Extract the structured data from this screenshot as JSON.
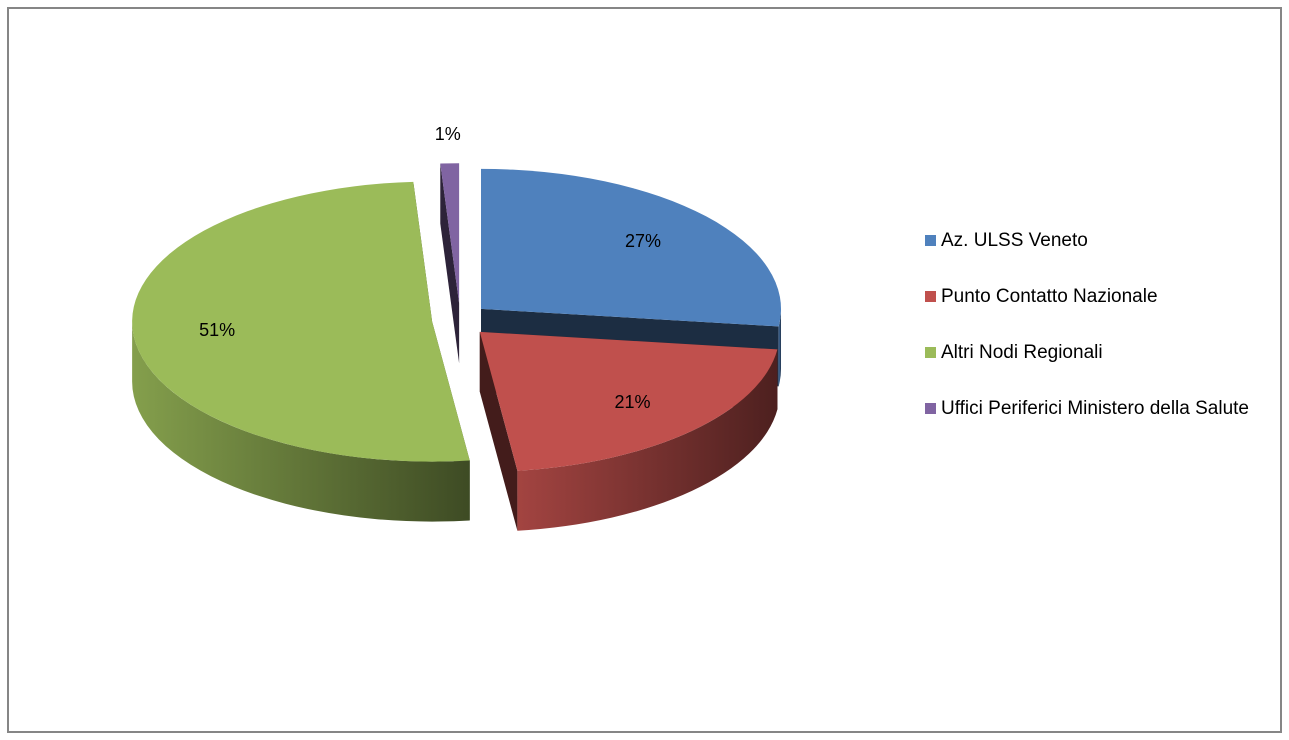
{
  "chart_data": {
    "type": "pie",
    "categories": [
      "Az. ULSS Veneto",
      "Punto Contatto Nazionale",
      "Altri Nodi Regionali",
      "Uffici Periferici Ministero della Salute"
    ],
    "values": [
      27,
      21,
      51,
      1
    ],
    "value_labels": [
      "27%",
      "21%",
      "51%",
      "1%"
    ],
    "colors": [
      "#4f81bd",
      "#c0504d",
      "#9bbb59",
      "#8064a2"
    ],
    "legend": "right"
  }
}
